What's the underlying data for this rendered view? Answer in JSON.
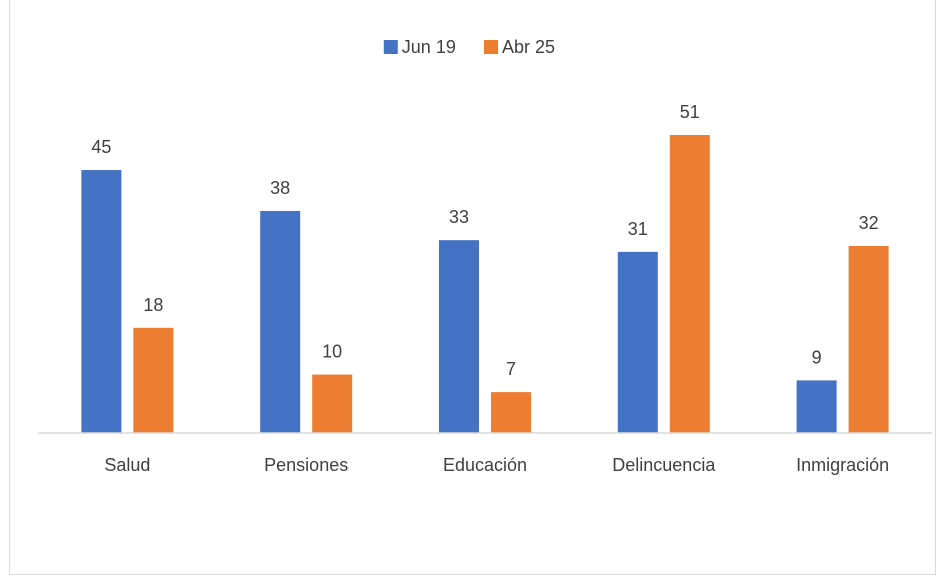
{
  "chart_data": {
    "type": "bar",
    "title": "",
    "categories": [
      "Salud",
      "Pensiones",
      "Educación",
      "Delincuencia",
      "Inmigración"
    ],
    "series": [
      {
        "name": "Jun 19",
        "values": [
          45,
          38,
          33,
          31,
          9
        ],
        "color": "#4472C4"
      },
      {
        "name": "Abr 25",
        "values": [
          18,
          10,
          7,
          51,
          32
        ],
        "color": "#ED7D31"
      }
    ],
    "ylim": [
      0,
      55
    ],
    "legend_position": "top-center",
    "grid": false,
    "data_labels": true
  }
}
